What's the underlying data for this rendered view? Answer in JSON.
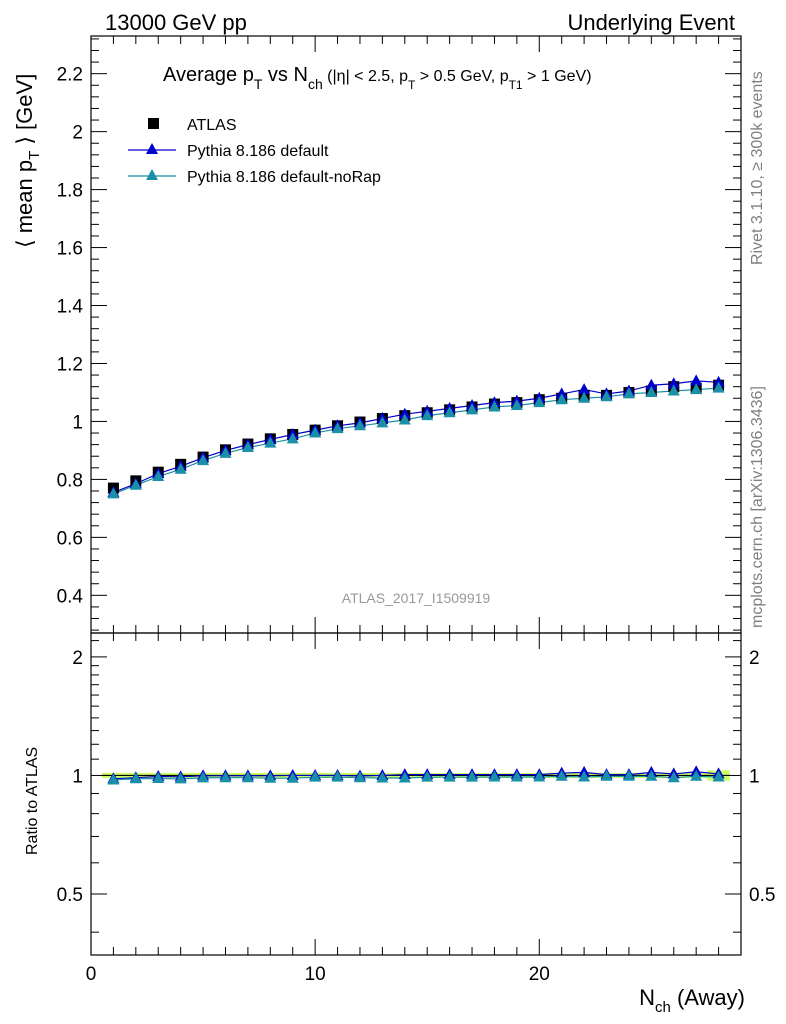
{
  "header": {
    "left": "13000 GeV pp",
    "right": "Underlying Event"
  },
  "side": {
    "rivet": "Rivet 3.1.10, ≥ 300k events",
    "mcplots": "mcplots.cern.ch [arXiv:1306.3436]"
  },
  "title": {
    "a": "Average p",
    "a_sub": "T",
    "b": " vs N",
    "b_sub": "ch",
    "c": " (|η| < 2.5, p",
    "c_sub": "T",
    "d": " > 0.5 GeV, p",
    "d_sub": "T1",
    "e": " > 1 GeV)"
  },
  "watermark": "ATLAS_2017_I1509919",
  "colors": {
    "data": "#000000",
    "default": "#0000cc",
    "norap": "#1a8fa8",
    "band": "#ccff66"
  },
  "chart_data": [
    {
      "type": "scatter",
      "ylabel_main": "⟨ mean p",
      "ylabel_sub": "T",
      "ylabel_tail": " ⟩ [GeV]",
      "ylim": [
        0.27,
        2.33
      ],
      "xlim": [
        0,
        29
      ],
      "yticks": [
        0.4,
        0.6,
        0.8,
        1,
        1.2,
        1.4,
        1.6,
        1.8,
        2,
        2.2
      ],
      "ytick_labels": [
        "0.4",
        "0.6",
        "0.8",
        "1",
        "1.2",
        "1.4",
        "1.6",
        "1.8",
        "2",
        "2.2"
      ],
      "legend_position": "top-left",
      "x": [
        1,
        2,
        3,
        4,
        5,
        6,
        7,
        8,
        9,
        10,
        11,
        12,
        13,
        14,
        15,
        16,
        17,
        18,
        19,
        20,
        21,
        22,
        23,
        24,
        25,
        26,
        27,
        28
      ],
      "series": [
        {
          "name": "ATLAS",
          "values": [
            0.77,
            0.795,
            0.825,
            0.852,
            0.877,
            0.902,
            0.922,
            0.94,
            0.955,
            0.97,
            0.985,
            0.998,
            1.01,
            1.02,
            1.03,
            1.04,
            1.05,
            1.06,
            1.065,
            1.075,
            1.08,
            1.09,
            1.09,
            1.1,
            1.105,
            1.12,
            1.115,
            1.125
          ]
        },
        {
          "name": "Pythia 8.186 default",
          "values": [
            0.755,
            0.785,
            0.82,
            0.845,
            0.875,
            0.9,
            0.92,
            0.938,
            0.955,
            0.97,
            0.985,
            0.995,
            1.01,
            1.025,
            1.035,
            1.045,
            1.055,
            1.065,
            1.07,
            1.08,
            1.095,
            1.11,
            1.095,
            1.105,
            1.125,
            1.13,
            1.14,
            1.135
          ]
        },
        {
          "name": "Pythia 8.186 default-noRap",
          "values": [
            0.75,
            0.78,
            0.81,
            0.835,
            0.865,
            0.89,
            0.91,
            0.925,
            0.94,
            0.96,
            0.975,
            0.985,
            0.995,
            1.005,
            1.02,
            1.03,
            1.04,
            1.05,
            1.055,
            1.065,
            1.075,
            1.08,
            1.085,
            1.095,
            1.1,
            1.105,
            1.11,
            1.115
          ]
        }
      ]
    },
    {
      "type": "scatter",
      "ylabel": "Ratio to ATLAS",
      "ylim": [
        0.35,
        2.3
      ],
      "xlim": [
        0,
        29
      ],
      "yscale": "log",
      "xlabel": "N",
      "xlabel_sub": "ch",
      "xlabel_tail": " (Away)",
      "xticks": [
        0,
        10,
        20
      ],
      "xtick_labels": [
        "0",
        "10",
        "20"
      ],
      "yticks": [
        0.5,
        1,
        2
      ],
      "ytick_labels": [
        "0.5",
        "1",
        "2"
      ],
      "x": [
        1,
        2,
        3,
        4,
        5,
        6,
        7,
        8,
        9,
        10,
        11,
        12,
        13,
        14,
        15,
        16,
        17,
        18,
        19,
        20,
        21,
        22,
        23,
        24,
        25,
        26,
        27,
        28
      ],
      "series": [
        {
          "name": "Pythia 8.186 default",
          "values": [
            0.981,
            0.987,
            0.994,
            0.992,
            0.998,
            0.998,
            0.998,
            0.998,
            1.0,
            1.0,
            1.0,
            0.997,
            1.0,
            1.005,
            1.005,
            1.005,
            1.005,
            1.005,
            1.005,
            1.005,
            1.014,
            1.018,
            1.005,
            1.005,
            1.018,
            1.009,
            1.022,
            1.009
          ]
        },
        {
          "name": "Pythia 8.186 default-noRap",
          "values": [
            0.974,
            0.981,
            0.982,
            0.98,
            0.986,
            0.987,
            0.987,
            0.984,
            0.984,
            0.99,
            0.99,
            0.987,
            0.985,
            0.985,
            0.99,
            0.99,
            0.99,
            0.991,
            0.991,
            0.991,
            0.995,
            0.991,
            0.995,
            0.995,
            0.995,
            0.987,
            0.995,
            0.991
          ]
        }
      ],
      "band": {
        "x": [
          0.5,
          28.5
        ],
        "lower": 0.985,
        "upper": 1.015,
        "lower_last": 0.97,
        "upper_last": 1.03
      }
    }
  ]
}
